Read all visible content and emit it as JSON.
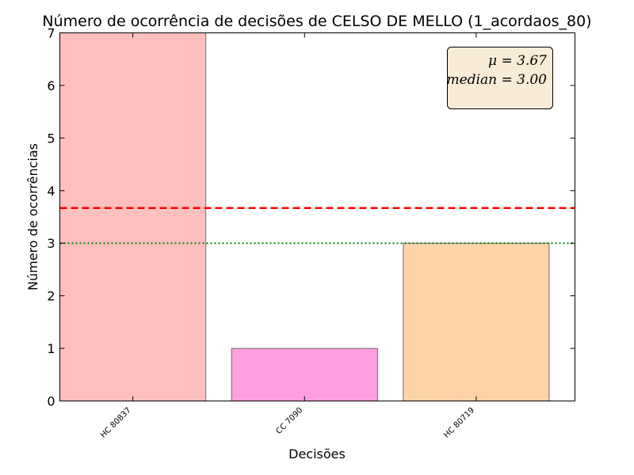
{
  "chart_data": {
    "type": "bar",
    "title": "Número de ocorrência de decisões de CELSO DE MELLO (1_acordaos_80)",
    "xlabel": "Decisões",
    "ylabel": "Número de ocorrências",
    "categories": [
      "HC 80837",
      "CC 7090",
      "HC 80719"
    ],
    "values": [
      7,
      1,
      3
    ],
    "bar_colors": [
      "#ffbfbf",
      "#ff9fdf",
      "#ffd3a8"
    ],
    "ylim": [
      0,
      7
    ],
    "yticks": [
      0,
      1,
      2,
      3,
      4,
      5,
      6,
      7
    ],
    "mean_line": {
      "value": 3.67,
      "color": "#ff0000",
      "style": "dashed"
    },
    "median_line": {
      "value": 3.0,
      "color": "#008000",
      "style": "dotted"
    },
    "stats_box": {
      "mean_text": "μ = 3.67",
      "median_text": "median = 3.00",
      "background": "#f9ecd7",
      "placement": "top-right"
    },
    "grid": false
  }
}
